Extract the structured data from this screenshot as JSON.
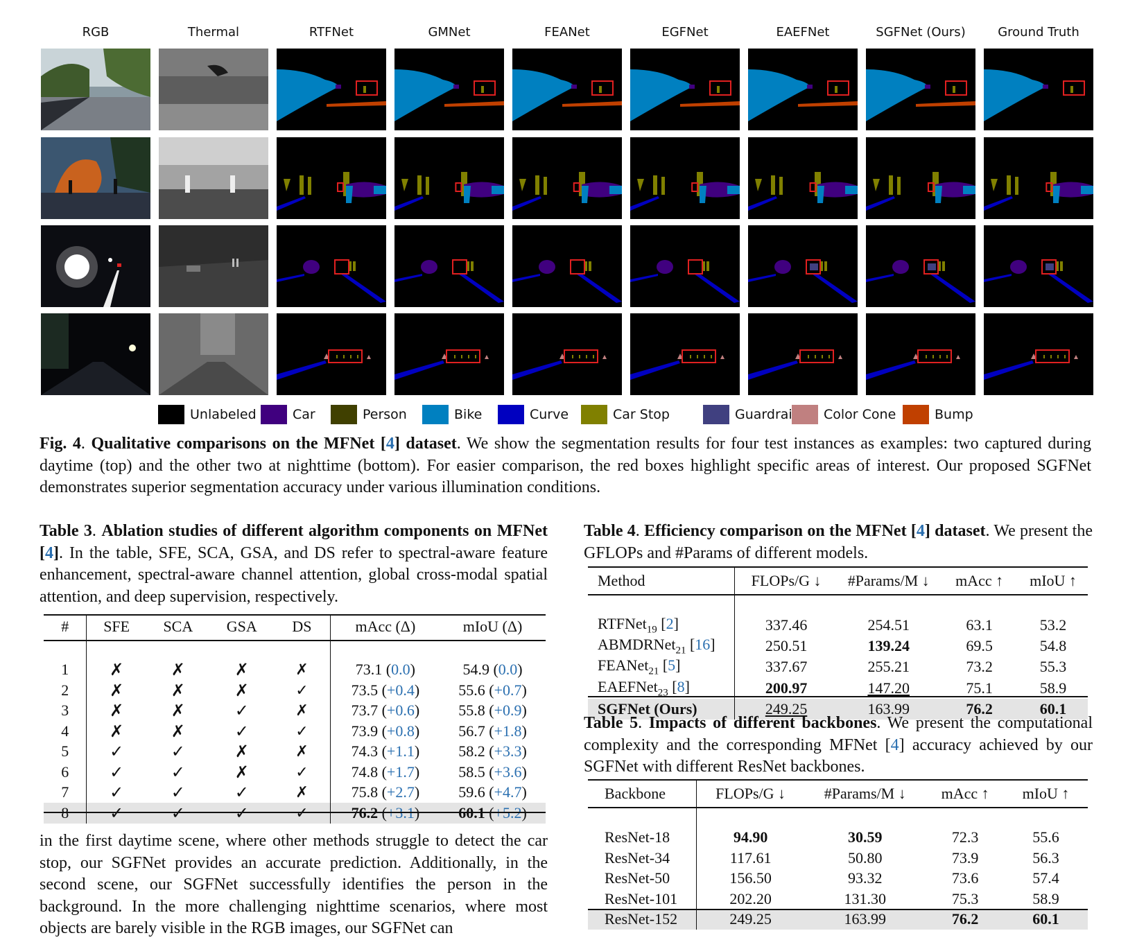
{
  "figure": {
    "columns": [
      "RGB",
      "Thermal",
      "RTFNet",
      "GMNet",
      "FEANet",
      "EGFNet",
      "EAEFNet",
      "SGFNet (Ours)",
      "Ground Truth"
    ],
    "legend": [
      {
        "label": "Unlabeled",
        "color": "#000000"
      },
      {
        "label": "Car",
        "color": "#40007f"
      },
      {
        "label": "Person",
        "color": "#404000"
      },
      {
        "label": "Bike",
        "color": "#0080c0"
      },
      {
        "label": "Curve",
        "color": "#0000c0"
      },
      {
        "label": "Car Stop",
        "color": "#808000"
      },
      {
        "label": "Guardrail",
        "color": "#404080"
      },
      {
        "label": "Color Cone",
        "color": "#c08080"
      },
      {
        "label": "Bump",
        "color": "#c04000"
      }
    ],
    "caption": {
      "label": "Fig. 4",
      "title_pre": "Qualitative comparisons on the MFNet [",
      "title_ref": "4",
      "title_post": "] dataset",
      "body": "We show the segmentation results for four test instances as examples: two captured during daytime (top) and the other two at nighttime (bottom). For easier comparison, the red boxes highlight specific areas of interest. Our proposed SGFNet demonstrates superior segmentation accuracy under various illumination conditions."
    }
  },
  "table3": {
    "caption_label": "Table 3",
    "caption_title_pre": "Ablation studies of different algorithm components on MFNet [",
    "caption_ref": "4",
    "caption_title_post": "]",
    "caption_body": "In the table, SFE, SCA, GSA, and DS refer to spectral-aware feature enhancement, spectral-aware channel attention, global cross-modal spatial attention, and deep supervision, respectively.",
    "headers": [
      "#",
      "SFE",
      "SCA",
      "GSA",
      "DS",
      "mAcc (Δ)",
      "mIoU (Δ)"
    ],
    "rows": [
      {
        "id": "1",
        "sfe": "✗",
        "sca": "✗",
        "gsa": "✗",
        "ds": "✗",
        "macc": "73.1",
        "dmacc": "0.0",
        "miou": "54.9",
        "dmiou": "0.0"
      },
      {
        "id": "2",
        "sfe": "✗",
        "sca": "✗",
        "gsa": "✗",
        "ds": "✓",
        "macc": "73.5",
        "dmacc": "+0.4",
        "miou": "55.6",
        "dmiou": "+0.7"
      },
      {
        "id": "3",
        "sfe": "✗",
        "sca": "✗",
        "gsa": "✓",
        "ds": "✗",
        "macc": "73.7",
        "dmacc": "+0.6",
        "miou": "55.8",
        "dmiou": "+0.9"
      },
      {
        "id": "4",
        "sfe": "✗",
        "sca": "✗",
        "gsa": "✓",
        "ds": "✓",
        "macc": "73.9",
        "dmacc": "+0.8",
        "miou": "56.7",
        "dmiou": "+1.8"
      },
      {
        "id": "5",
        "sfe": "✓",
        "sca": "✓",
        "gsa": "✗",
        "ds": "✗",
        "macc": "74.3",
        "dmacc": "+1.1",
        "miou": "58.2",
        "dmiou": "+3.3"
      },
      {
        "id": "6",
        "sfe": "✓",
        "sca": "✓",
        "gsa": "✗",
        "ds": "✓",
        "macc": "74.8",
        "dmacc": "+1.7",
        "miou": "58.5",
        "dmiou": "+3.6"
      },
      {
        "id": "7",
        "sfe": "✓",
        "sca": "✓",
        "gsa": "✓",
        "ds": "✗",
        "macc": "75.8",
        "dmacc": "+2.7",
        "miou": "59.6",
        "dmiou": "+4.7"
      },
      {
        "id": "8",
        "sfe": "✓",
        "sca": "✓",
        "gsa": "✓",
        "ds": "✓",
        "macc": "76.2",
        "dmacc": "+3.1",
        "miou": "60.1",
        "dmiou": "+5.2"
      }
    ]
  },
  "body_text": "in the first daytime scene, where other methods struggle to detect the car stop, our SGFNet provides an accurate prediction. Additionally, in the second scene, our SGFNet successfully identifies the person in the background. In the more challenging nighttime scenarios, where most objects are barely visible in the RGB images, our SGFNet can",
  "table4": {
    "caption_label": "Table 4",
    "caption_title_pre": "Efficiency comparison on the MFNet [",
    "caption_ref": "4",
    "caption_title_post": "] dataset",
    "caption_body": "We present the GFLOPs and #Params of different models.",
    "headers": [
      "Method",
      "FLOPs/G ↓",
      "#Params/M ↓",
      "mAcc ↑",
      "mIoU ↑"
    ],
    "rows": [
      {
        "name": "RTFNet",
        "sub": "19",
        "ref": "2",
        "flops": "337.46",
        "params": "254.51",
        "macc": "63.1",
        "miou": "53.2"
      },
      {
        "name": "ABMDRNet",
        "sub": "21",
        "ref": "16",
        "flops": "250.51",
        "params": "139.24",
        "macc": "69.5",
        "miou": "54.8"
      },
      {
        "name": "FEANet",
        "sub": "21",
        "ref": "5",
        "flops": "337.67",
        "params": "255.21",
        "macc": "73.2",
        "miou": "55.3"
      },
      {
        "name": "EAEFNet",
        "sub": "23",
        "ref": "8",
        "flops": "200.97",
        "params": "147.20",
        "macc": "75.1",
        "miou": "58.9"
      },
      {
        "name": "SGFNet (Ours)",
        "sub": "",
        "ref": "",
        "flops": "249.25",
        "params": "163.99",
        "macc": "76.2",
        "miou": "60.1"
      }
    ]
  },
  "table5": {
    "caption_label": "Table 5",
    "caption_title": "Impacts of different backbones",
    "caption_body_pre": "We present the computational complexity and the corresponding MFNet [",
    "caption_ref": "4",
    "caption_body_post": "] accuracy achieved by our SGFNet with different ResNet backbones.",
    "headers": [
      "Backbone",
      "FLOPs/G ↓",
      "#Params/M ↓",
      "mAcc ↑",
      "mIoU ↑"
    ],
    "rows": [
      {
        "name": "ResNet-18",
        "flops": "94.90",
        "params": "30.59",
        "macc": "72.3",
        "miou": "55.6"
      },
      {
        "name": "ResNet-34",
        "flops": "117.61",
        "params": "50.80",
        "macc": "73.9",
        "miou": "56.3"
      },
      {
        "name": "ResNet-50",
        "flops": "156.50",
        "params": "93.32",
        "macc": "73.6",
        "miou": "57.4"
      },
      {
        "name": "ResNet-101",
        "flops": "202.20",
        "params": "131.30",
        "macc": "75.3",
        "miou": "58.9"
      },
      {
        "name": "ResNet-152",
        "flops": "249.25",
        "params": "163.99",
        "macc": "76.2",
        "miou": "60.1"
      }
    ]
  }
}
